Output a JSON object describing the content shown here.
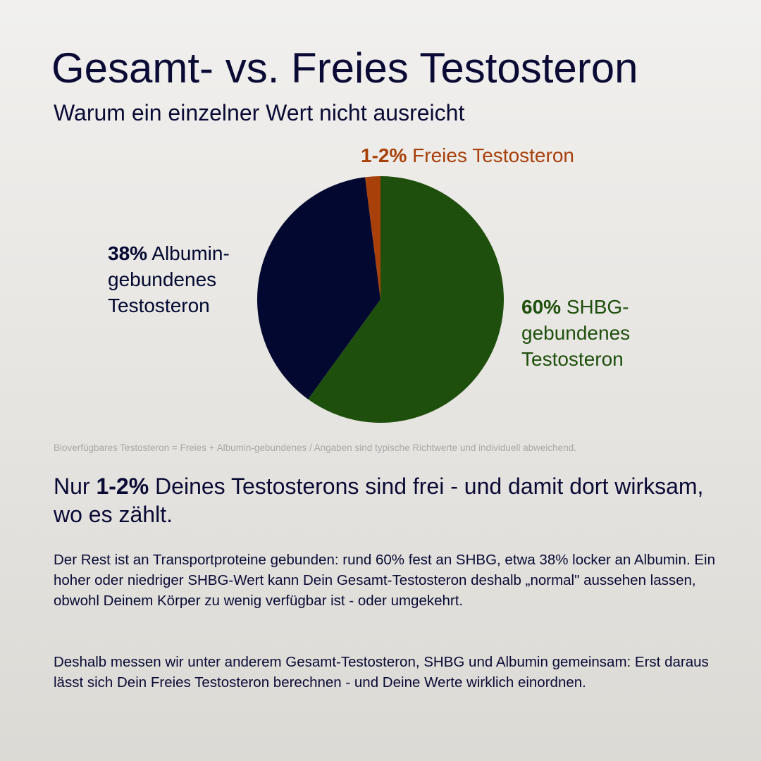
{
  "chart_data": {
    "type": "pie",
    "title": "Gesamt- vs. Freies Testosteron",
    "subtitle": "Warum ein einzelner Wert nicht ausreicht",
    "categories": [
      "SHBG-\ngebundenes\nTestosteron",
      "Albumin-\ngebundenes\nTestosteron",
      "Freies Testosteron"
    ],
    "values": [
      60,
      38,
      2
    ],
    "value_labels": [
      "60%",
      "38%",
      "1-2%"
    ],
    "colors": [
      "#1f4f0c",
      "#020830",
      "#a8400a"
    ],
    "note": "Bioverfügbares Testosteron = Freies + Albumin-gebundenes / Angaben sind typische Richtwerte und individuell abweichend."
  },
  "headline": {
    "before": "Nur ",
    "highlight": "1-2%",
    "after": " Deines Testosterons sind frei - und damit dort wirksam, wo es zählt."
  },
  "body": [
    "Der Rest ist an Transportproteine gebunden: rund 60% fest an SHBG, etwa 38% locker an Albumin. Ein hoher oder niedriger SHBG-Wert kann Dein Gesamt-Testosteron deshalb „normal\" aussehen lassen, obwohl Deinem Körper zu wenig verfügbar ist - oder umgekehrt.",
    "Deshalb messen wir unter anderem Gesamt-Testosteron, SHBG und Albumin gemeinsam: Erst daraus lässt sich Dein Freies Testosteron berechnen - und Deine Werte wirklich einordnen."
  ]
}
